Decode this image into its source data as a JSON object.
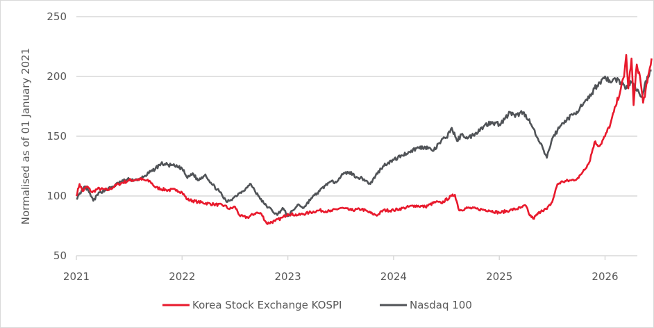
{
  "chart_data": {
    "type": "line",
    "title": "",
    "xlabel": "",
    "ylabel": "Normalised as of 01 January 2021",
    "ylim": [
      50,
      250
    ],
    "yticks": [
      50,
      100,
      150,
      200,
      250
    ],
    "xlim": [
      2021,
      2026.3
    ],
    "xticks": [
      2021,
      2022,
      2023,
      2024,
      2025,
      2026
    ],
    "xtick_labels": [
      "2021",
      "2022",
      "2023",
      "2024",
      "2025",
      "2026"
    ],
    "ytick_labels": [
      "50",
      "100",
      "150",
      "200",
      "250"
    ],
    "grid": "horizontal",
    "legend_position": "bottom",
    "series": [
      {
        "name": "Korea Stock Exchange KOSPI",
        "color": "#e8192c",
        "x": [
          2021.0,
          2021.03,
          2021.06,
          2021.1,
          2021.15,
          2021.2,
          2021.3,
          2021.4,
          2021.5,
          2021.6,
          2021.7,
          2021.75,
          2021.85,
          2021.95,
          2022.0,
          2022.05,
          2022.15,
          2022.3,
          2022.4,
          2022.45,
          2022.5,
          2022.55,
          2022.62,
          2022.7,
          2022.75,
          2022.8,
          2022.88,
          2022.95,
          2023.0,
          2023.1,
          2023.2,
          2023.3,
          2023.4,
          2023.5,
          2023.6,
          2023.7,
          2023.8,
          2023.85,
          2023.9,
          2024.0,
          2024.1,
          2024.2,
          2024.3,
          2024.4,
          2024.45,
          2024.55,
          2024.58,
          2024.62,
          2024.7,
          2024.8,
          2024.9,
          2025.0,
          2025.1,
          2025.2,
          2025.25,
          2025.28,
          2025.32,
          2025.4,
          2025.45,
          2025.5,
          2025.55,
          2025.6,
          2025.68,
          2025.75,
          2025.8,
          2025.85,
          2025.9,
          2025.95,
          2026.0,
          2026.05,
          2026.1,
          2026.15,
          2026.18,
          2026.2,
          2026.22,
          2026.25,
          2026.27,
          2026.3,
          2026.33,
          2026.36,
          2026.4,
          2026.44
        ],
        "y": [
          100,
          110,
          104,
          108,
          103,
          106,
          105,
          110,
          113,
          114,
          112,
          107,
          105,
          105,
          103,
          97,
          95,
          93,
          92,
          89,
          91,
          83,
          82,
          86,
          85,
          77,
          79,
          82,
          85,
          84,
          86,
          88,
          87,
          90,
          88,
          89,
          85,
          84,
          88,
          88,
          90,
          92,
          91,
          95,
          94,
          100,
          101,
          88,
          90,
          89,
          88,
          86,
          88,
          90,
          92,
          85,
          81,
          88,
          89,
          95,
          110,
          112,
          113,
          115,
          122,
          128,
          145,
          142,
          150,
          160,
          175,
          190,
          200,
          218,
          190,
          215,
          176,
          210,
          200,
          178,
          195,
          215
        ]
      },
      {
        "name": "Nasdaq 100",
        "color": "#505357",
        "x": [
          2021.0,
          2021.04,
          2021.08,
          2021.12,
          2021.16,
          2021.22,
          2021.28,
          2021.35,
          2021.42,
          2021.5,
          2021.58,
          2021.65,
          2021.72,
          2021.8,
          2021.87,
          2021.93,
          2022.0,
          2022.05,
          2022.1,
          2022.15,
          2022.22,
          2022.28,
          2022.35,
          2022.42,
          2022.48,
          2022.55,
          2022.6,
          2022.65,
          2022.72,
          2022.78,
          2022.85,
          2022.9,
          2022.95,
          2023.0,
          2023.05,
          2023.1,
          2023.15,
          2023.22,
          2023.3,
          2023.38,
          2023.45,
          2023.52,
          2023.58,
          2023.65,
          2023.72,
          2023.78,
          2023.83,
          2023.9,
          2023.95,
          2024.0,
          2024.08,
          2024.15,
          2024.22,
          2024.3,
          2024.38,
          2024.45,
          2024.5,
          2024.55,
          2024.6,
          2024.65,
          2024.7,
          2024.78,
          2024.85,
          2024.92,
          2025.0,
          2025.05,
          2025.1,
          2025.15,
          2025.2,
          2025.25,
          2025.3,
          2025.35,
          2025.38,
          2025.42,
          2025.45,
          2025.5,
          2025.55,
          2025.62,
          2025.7,
          2025.78,
          2025.85,
          2025.9,
          2025.95,
          2026.0,
          2026.05,
          2026.1,
          2026.15,
          2026.2,
          2026.25,
          2026.3,
          2026.35,
          2026.4,
          2026.44
        ],
        "y": [
          98,
          102,
          108,
          103,
          96,
          103,
          105,
          108,
          112,
          114,
          113,
          117,
          121,
          127,
          126,
          125,
          123,
          115,
          119,
          113,
          118,
          110,
          104,
          95,
          98,
          103,
          106,
          110,
          100,
          93,
          88,
          84,
          90,
          83,
          88,
          93,
          90,
          98,
          104,
          111,
          112,
          118,
          120,
          116,
          114,
          110,
          117,
          125,
          128,
          130,
          134,
          137,
          140,
          141,
          138,
          146,
          149,
          157,
          146,
          152,
          148,
          153,
          158,
          162,
          160,
          164,
          170,
          166,
          170,
          168,
          160,
          150,
          145,
          138,
          132,
          148,
          155,
          163,
          168,
          175,
          182,
          190,
          195,
          200,
          195,
          198,
          195,
          190,
          195,
          188,
          183,
          200,
          205
        ]
      }
    ]
  }
}
